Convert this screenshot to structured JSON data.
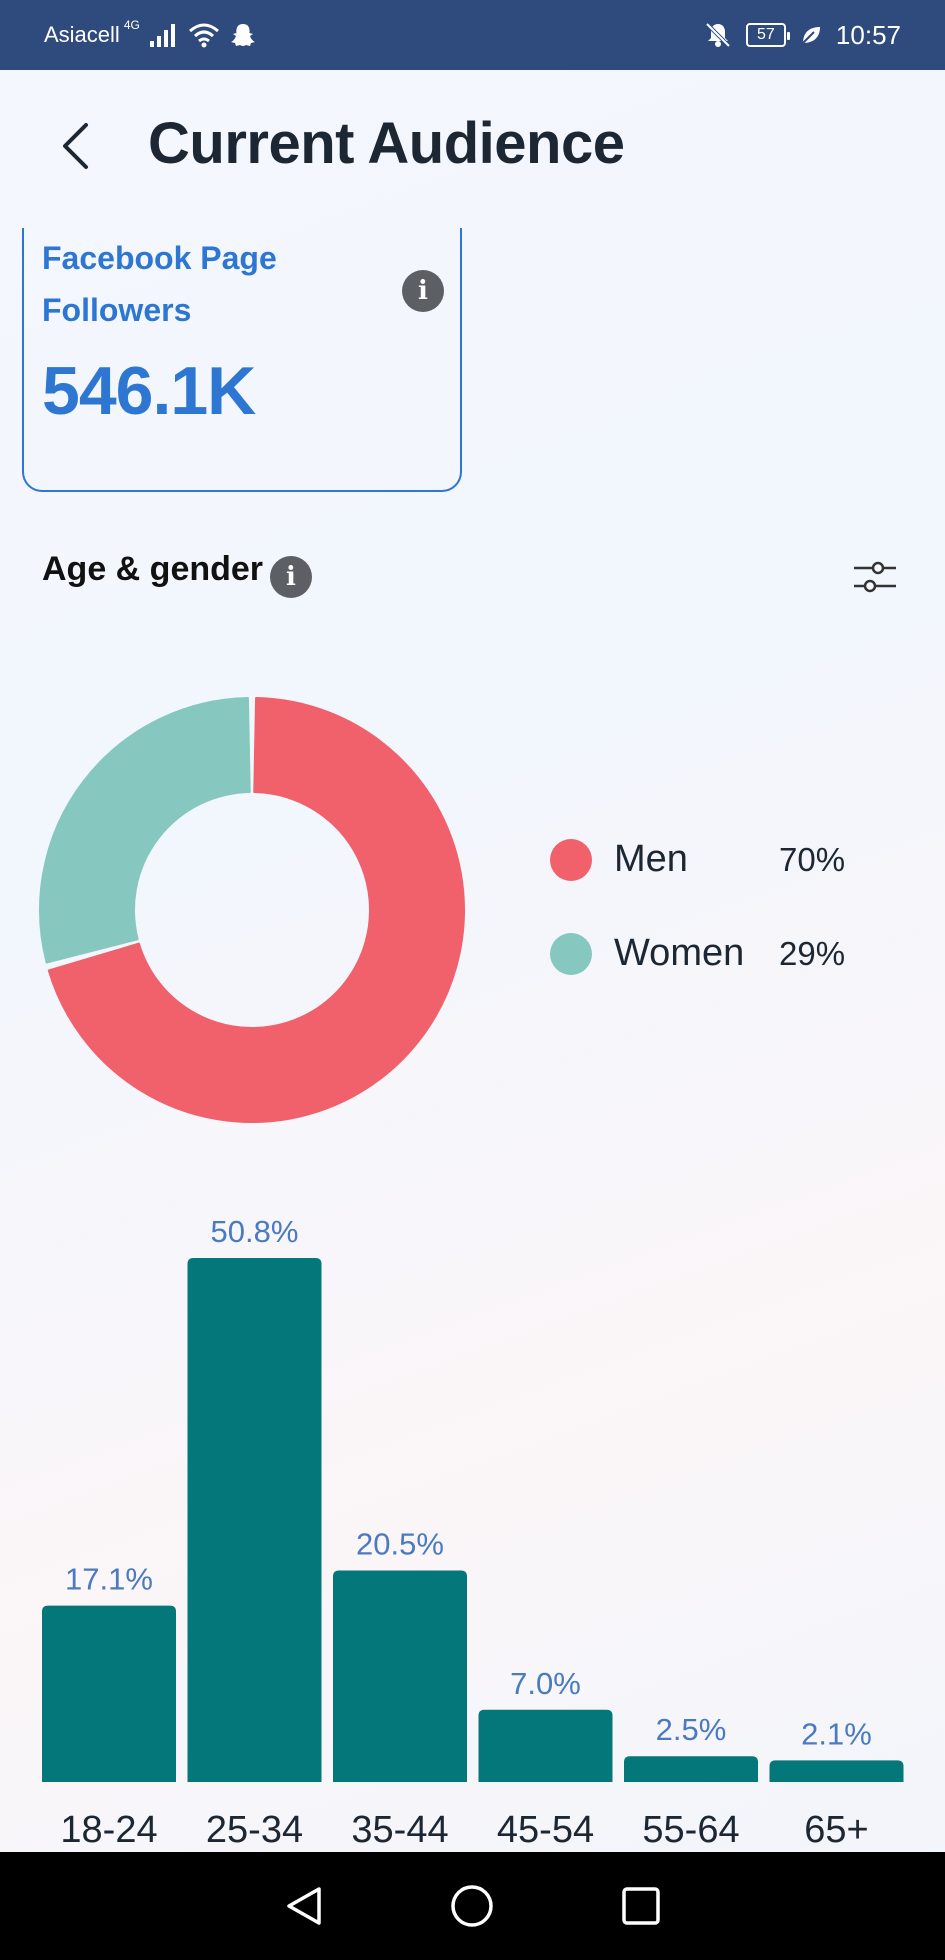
{
  "status_bar": {
    "carrier": "Asiacell",
    "network": "4G",
    "battery": "57",
    "time": "10:57"
  },
  "header": {
    "title": "Current Audience"
  },
  "followers_card": {
    "label": "Facebook Page Followers",
    "value": "546.1K"
  },
  "age_gender": {
    "title": "Age & gender"
  },
  "colors": {
    "men": "#f0616c",
    "women": "#86c8bf",
    "bar": "#037779",
    "bar_label": "#4a7ac0",
    "accent": "#2d76d2"
  },
  "chart_data": [
    {
      "type": "pie",
      "title": "",
      "categories": [
        "Men",
        "Women"
      ],
      "values": [
        70,
        29
      ],
      "value_labels": [
        "70%",
        "29%"
      ],
      "donut": true,
      "legend": "right"
    },
    {
      "type": "bar",
      "title": "",
      "categories": [
        "18-24",
        "25-34",
        "35-44",
        "45-54",
        "55-64",
        "65+"
      ],
      "values": [
        17.1,
        50.8,
        20.5,
        7.0,
        2.5,
        2.1
      ],
      "value_labels": [
        "17.1%",
        "50.8%",
        "20.5%",
        "7.0%",
        "2.5%",
        "2.1%"
      ],
      "xlabel": "",
      "ylabel": "",
      "ylim": [
        0,
        50.8
      ],
      "grid": false
    }
  ]
}
